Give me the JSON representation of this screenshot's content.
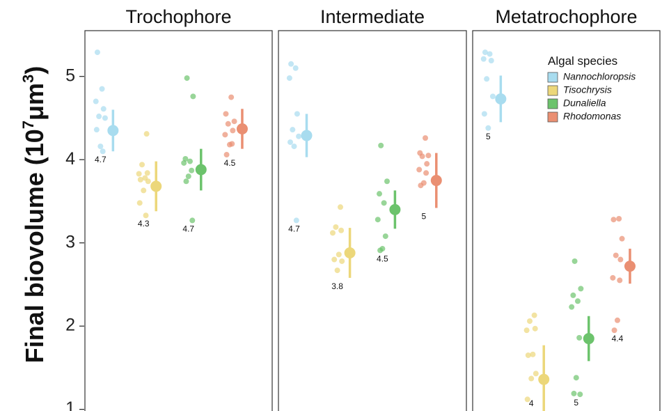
{
  "colors": {
    "Nannochloropsis": "#a8dcef",
    "Tisochrysis": "#ecd77a",
    "Dunaliella": "#6cc36c",
    "Rhodomonas": "#ea8f72"
  },
  "chart_data": {
    "type": "scatter",
    "ylabel": "Final biovolume (10",
    "ylabel_sup": "7",
    "ylabel_mid": "μm",
    "ylabel_sup2": "3",
    "ylabel_end": ")",
    "ylim": [
      0.98,
      5.55
    ],
    "yticks": [
      1,
      2,
      3,
      4,
      5
    ],
    "grid": false,
    "legend": {
      "title": "Algal species",
      "placement": "top-right",
      "entries": [
        "Nannochloropsis",
        "Tisochrysis",
        "Dunaliella",
        "Rhodomonas"
      ]
    },
    "panels": [
      {
        "title": "Trochophore",
        "groups": [
          {
            "species": "Nannochloropsis",
            "mean": 4.35,
            "lo": 4.1,
            "hi": 4.6,
            "label": "4.7",
            "points": [
              5.29,
              4.85,
              4.7,
              4.61,
              4.52,
              4.5,
              4.36,
              4.16,
              4.1
            ]
          },
          {
            "species": "Tisochrysis",
            "mean": 3.68,
            "lo": 3.38,
            "hi": 3.98,
            "label": "4.3",
            "points": [
              4.31,
              3.94,
              3.84,
              3.83,
              3.78,
              3.76,
              3.74,
              3.63,
              3.48,
              3.33
            ]
          },
          {
            "species": "Dunaliella",
            "mean": 3.88,
            "lo": 3.63,
            "hi": 4.13,
            "label": "4.7",
            "points": [
              4.98,
              4.76,
              4.01,
              3.98,
              3.96,
              3.87,
              3.8,
              3.74,
              3.27
            ]
          },
          {
            "species": "Rhodomonas",
            "mean": 4.37,
            "lo": 4.13,
            "hi": 4.61,
            "label": "4.5",
            "points": [
              4.75,
              4.55,
              4.46,
              4.43,
              4.35,
              4.3,
              4.19,
              4.18,
              4.06
            ]
          }
        ]
      },
      {
        "title": "Intermediate",
        "groups": [
          {
            "species": "Nannochloropsis",
            "mean": 4.29,
            "lo": 4.03,
            "hi": 4.55,
            "label": "4.7",
            "points": [
              5.15,
              5.1,
              4.98,
              4.55,
              4.36,
              4.28,
              4.21,
              4.16,
              3.27
            ]
          },
          {
            "species": "Tisochrysis",
            "mean": 2.88,
            "lo": 2.58,
            "hi": 3.18,
            "label": "3.8",
            "points": [
              3.43,
              3.19,
              3.15,
              3.12,
              2.86,
              2.8,
              2.78,
              2.67
            ]
          },
          {
            "species": "Dunaliella",
            "mean": 3.4,
            "lo": 3.17,
            "hi": 3.63,
            "label": "4.5",
            "points": [
              4.17,
              3.74,
              3.59,
              3.48,
              3.28,
              3.08,
              2.93,
              2.91
            ]
          },
          {
            "species": "Rhodomonas",
            "mean": 3.75,
            "lo": 3.42,
            "hi": 4.08,
            "label": "5",
            "points": [
              4.26,
              4.08,
              4.05,
              4.04,
              3.95,
              3.88,
              3.84,
              3.72,
              3.69
            ]
          }
        ]
      },
      {
        "title": "Metatrochophore",
        "groups": [
          {
            "species": "Nannochloropsis",
            "mean": 4.73,
            "lo": 4.45,
            "hi": 5.01,
            "label": "5",
            "points": [
              5.29,
              5.27,
              5.21,
              5.19,
              4.97,
              4.76,
              4.55,
              4.38
            ]
          },
          {
            "species": "Tisochrysis",
            "mean": 1.36,
            "lo": 0.95,
            "hi": 1.77,
            "label": "4",
            "points": [
              2.13,
              2.06,
              1.97,
              1.95,
              1.66,
              1.65,
              1.43,
              1.37,
              1.12
            ]
          },
          {
            "species": "Dunaliella",
            "mean": 1.85,
            "lo": 1.58,
            "hi": 2.12,
            "label": "5",
            "points": [
              2.78,
              2.45,
              2.37,
              2.3,
              2.23,
              1.86,
              1.38,
              1.19,
              1.18
            ]
          },
          {
            "species": "Rhodomonas",
            "mean": 2.72,
            "lo": 2.51,
            "hi": 2.93,
            "label": "4.4",
            "points": [
              3.29,
              3.28,
              3.05,
              2.85,
              2.8,
              2.58,
              2.55,
              2.07,
              1.95
            ]
          }
        ]
      }
    ]
  }
}
